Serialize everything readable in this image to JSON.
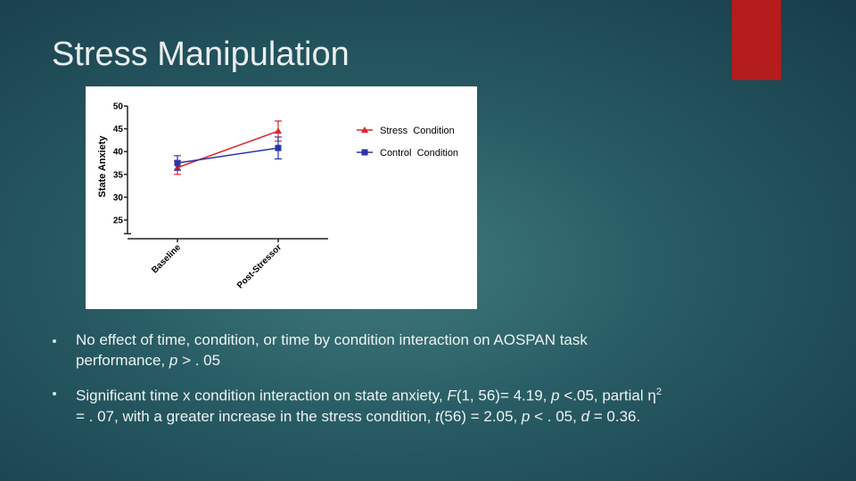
{
  "title": "Stress Manipulation",
  "chart_data": {
    "type": "line",
    "y_label": "State Anxiety",
    "categories": [
      "Baseline",
      "Post-Stressor"
    ],
    "series": [
      {
        "name": "Stress  Condition",
        "color": "#d9262b",
        "marker": "triangle",
        "values": [
          36.5,
          44.5
        ],
        "errors": [
          1.5,
          2.2
        ]
      },
      {
        "name": "Control  Condition",
        "color": "#2a34a8",
        "marker": "square",
        "values": [
          37.5,
          40.8
        ],
        "errors": [
          1.6,
          2.4
        ]
      }
    ],
    "ylim": [
      22,
      50
    ],
    "yticks": [
      25,
      30,
      35,
      40,
      45,
      50
    ],
    "legend": "right"
  },
  "bullets": [
    [
      "No effect of time, condition, or time by condition interaction on AOSPAN task performance, ",
      "p",
      " > . 05"
    ],
    [
      "Significant time x condition interaction on state anxiety, ",
      "F",
      "(1, 56)= 4.19, ",
      "p",
      " <.05, partial η",
      "2",
      " = . 07, with a greater increase in the stress condition, ",
      "t",
      "(56) = 2.05, ",
      "p",
      " < . 05, ",
      "d",
      " = 0.36."
    ]
  ]
}
